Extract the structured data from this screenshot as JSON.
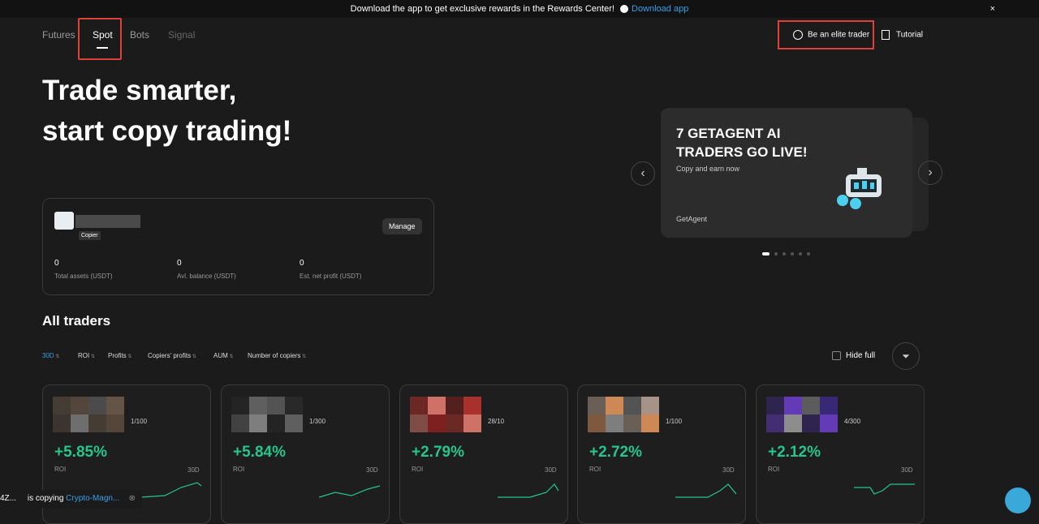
{
  "banner": {
    "text": "Download the app to get exclusive rewards in the Rewards Center!",
    "link": "Download app"
  },
  "nav": {
    "tabs": [
      "Futures",
      "Spot",
      "Bots",
      "Signal"
    ],
    "elite": "Be an elite trader",
    "tutorial": "Tutorial"
  },
  "hero": {
    "line1": "Trade smarter,",
    "line2": "start copy trading!"
  },
  "account": {
    "role": "Copier",
    "manage": "Manage",
    "stats": [
      {
        "value": 0,
        "label": "Total assets (USDT)"
      },
      {
        "value": 0,
        "label": "Avl. balance (USDT)"
      },
      {
        "value": 0,
        "label": "Est. net profit (USDT)"
      }
    ]
  },
  "promo": {
    "title": "7 GETAGENT AI TRADERS GO LIVE!",
    "subtitle": "Copy and earn now",
    "brand": "GetAgent"
  },
  "traders_section": {
    "title": "All traders",
    "filters": [
      "30D",
      "ROI",
      "Profits",
      "Copiers' profits",
      "AUM",
      "Number of copiers"
    ],
    "hide_full": "Hide full",
    "cards": [
      {
        "copiers": "1/100",
        "roi": "+5.85%",
        "roi_label": "ROI",
        "period": "30D"
      },
      {
        "copiers": "1/300",
        "roi": "+5.84%",
        "roi_label": "ROI",
        "period": "30D"
      },
      {
        "copiers": "28/10",
        "roi": "+2.79%",
        "roi_label": "ROI",
        "period": "30D"
      },
      {
        "copiers": "1/100",
        "roi": "+2.72%",
        "roi_label": "ROI",
        "period": "30D"
      },
      {
        "copiers": "4/300",
        "roi": "+2.12%",
        "roi_label": "ROI",
        "period": "30D"
      }
    ]
  },
  "toast": {
    "user": "4Z...",
    "action": "is copying",
    "target": "Crypto-Magn..."
  }
}
